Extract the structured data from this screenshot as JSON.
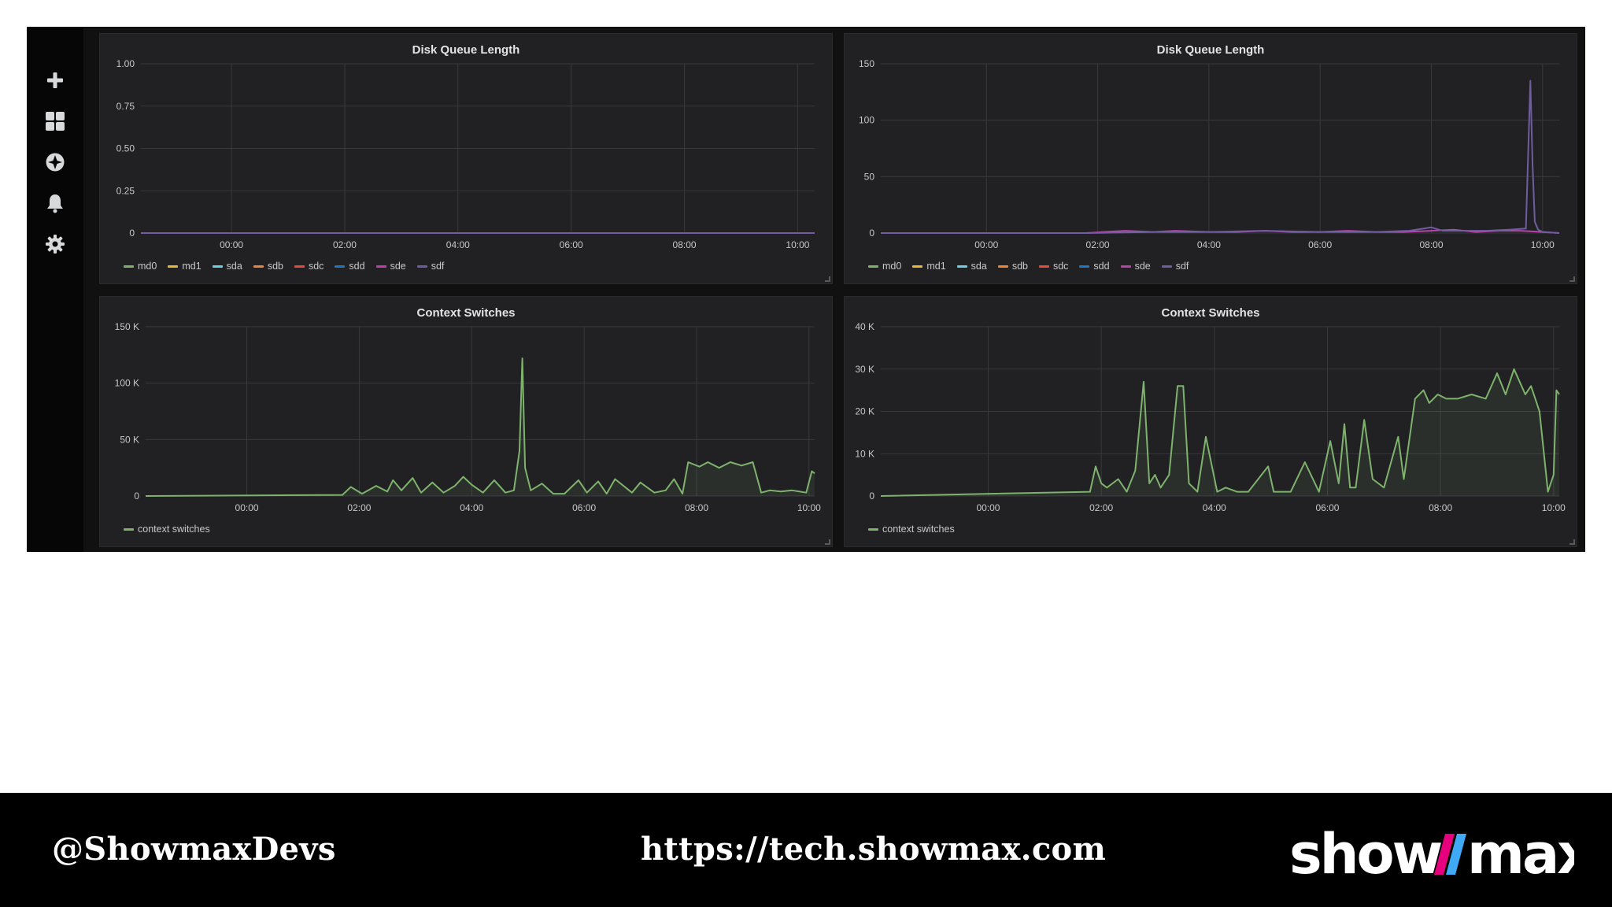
{
  "colors": {
    "md0": "#7eb26d",
    "md1": "#eab839",
    "sda": "#6ed0e0",
    "sdb": "#ef843c",
    "sdc": "#e24d42",
    "sdd": "#1f78c1",
    "sde": "#ba43a9",
    "sdf": "#705da0",
    "context_switches": "#7eb26d",
    "grid": "#38393d",
    "axis_text": "#c7c7c7"
  },
  "sidebar": {
    "icons": [
      {
        "name": "plus-icon"
      },
      {
        "name": "dashboards-icon"
      },
      {
        "name": "explore-icon"
      },
      {
        "name": "alerting-bell-icon"
      },
      {
        "name": "settings-gear-icon"
      }
    ]
  },
  "panels": [
    {
      "id": "p1",
      "title": "Disk Queue Length",
      "legend": [
        "md0",
        "md1",
        "sda",
        "sdb",
        "sdc",
        "sdd",
        "sde",
        "sdf"
      ]
    },
    {
      "id": "p2",
      "title": "Disk Queue Length",
      "legend": [
        "md0",
        "md1",
        "sda",
        "sdb",
        "sdc",
        "sdd",
        "sde",
        "sdf"
      ]
    },
    {
      "id": "p3",
      "title": "Context Switches",
      "legend": [
        "context switches"
      ]
    },
    {
      "id": "p4",
      "title": "Context Switches",
      "legend": [
        "context switches"
      ]
    }
  ],
  "chart_data": [
    {
      "type": "line",
      "title": "Disk Queue Length",
      "x_ticks": [
        "00:00",
        "02:00",
        "04:00",
        "06:00",
        "08:00",
        "10:00"
      ],
      "y_ticks": [
        "0",
        "0.25",
        "0.50",
        "0.75",
        "1.00"
      ],
      "ylim": [
        0,
        1
      ],
      "xlim": [
        -1.6,
        10.3
      ],
      "grid": true,
      "legend_position": "bottom-left",
      "series": [
        {
          "name": "md0",
          "x": [
            -1.6,
            10.3
          ],
          "y": [
            0,
            0
          ]
        },
        {
          "name": "md1",
          "x": [
            -1.6,
            10.3
          ],
          "y": [
            0,
            0
          ]
        },
        {
          "name": "sda",
          "x": [
            -1.6,
            10.3
          ],
          "y": [
            0,
            0
          ]
        },
        {
          "name": "sdb",
          "x": [
            -1.6,
            10.3
          ],
          "y": [
            0,
            0
          ]
        },
        {
          "name": "sdc",
          "x": [
            -1.6,
            10.3
          ],
          "y": [
            0,
            0
          ]
        },
        {
          "name": "sdd",
          "x": [
            -1.6,
            10.3
          ],
          "y": [
            0,
            0
          ]
        },
        {
          "name": "sde",
          "x": [
            -1.6,
            10.3
          ],
          "y": [
            0,
            0
          ]
        },
        {
          "name": "sdf",
          "x": [
            -1.6,
            10.3
          ],
          "y": [
            0,
            0
          ]
        }
      ]
    },
    {
      "type": "line",
      "title": "Disk Queue Length",
      "x_ticks": [
        "00:00",
        "02:00",
        "04:00",
        "06:00",
        "08:00",
        "10:00"
      ],
      "y_ticks": [
        "0",
        "50",
        "100",
        "150"
      ],
      "ylim": [
        0,
        150
      ],
      "xlim": [
        -1.9,
        10.3
      ],
      "grid": true,
      "legend_position": "bottom-left",
      "series": [
        {
          "name": "sde",
          "x": [
            -1.9,
            1.8,
            2.1,
            2.5,
            3.0,
            3.4,
            4.0,
            4.5,
            5.0,
            5.5,
            6.0,
            6.5,
            7.0,
            7.5,
            8.0,
            8.4,
            8.8,
            9.2,
            9.6,
            10.0,
            10.3
          ],
          "y": [
            0,
            0,
            1,
            2,
            1,
            2,
            1,
            1,
            2,
            1,
            1,
            2,
            1,
            1,
            2,
            3,
            1,
            2,
            2,
            1,
            0
          ]
        },
        {
          "name": "sdf",
          "x": [
            -1.9,
            1.8,
            3.0,
            4.0,
            5.0,
            6.0,
            7.0,
            7.6,
            8.0,
            8.2,
            8.5,
            9.0,
            9.4,
            9.7,
            9.78,
            9.82,
            9.86,
            9.92,
            10.0,
            10.3
          ],
          "y": [
            0,
            0,
            1,
            1,
            2,
            1,
            1,
            2,
            5,
            2,
            2,
            2,
            3,
            4,
            135,
            60,
            10,
            3,
            1,
            0
          ]
        }
      ]
    },
    {
      "type": "area",
      "title": "Context Switches",
      "x_ticks": [
        "00:00",
        "02:00",
        "04:00",
        "06:00",
        "08:00",
        "10:00"
      ],
      "y_ticks": [
        "0",
        "50 K",
        "100 K",
        "150 K"
      ],
      "ylim": [
        0,
        150000
      ],
      "xlim": [
        -1.8,
        10.1
      ],
      "grid": true,
      "legend_position": "bottom-left",
      "series": [
        {
          "name": "context switches",
          "x": [
            -1.8,
            1.7,
            1.85,
            2.05,
            2.3,
            2.5,
            2.6,
            2.75,
            2.95,
            3.1,
            3.3,
            3.5,
            3.7,
            3.85,
            4.0,
            4.2,
            4.4,
            4.6,
            4.75,
            4.85,
            4.9,
            4.95,
            5.05,
            5.25,
            5.45,
            5.65,
            5.9,
            6.05,
            6.25,
            6.4,
            6.55,
            6.85,
            7.0,
            7.25,
            7.45,
            7.6,
            7.75,
            7.85,
            8.05,
            8.2,
            8.4,
            8.6,
            8.8,
            9.0,
            9.15,
            9.3,
            9.5,
            9.7,
            9.95,
            10.05,
            10.1
          ],
          "y": [
            0,
            1000,
            8000,
            2000,
            9000,
            4000,
            14000,
            5000,
            16000,
            3000,
            12000,
            3000,
            9000,
            17000,
            10000,
            3000,
            14000,
            3000,
            5000,
            40000,
            122000,
            25000,
            5000,
            11000,
            2000,
            2000,
            14000,
            3000,
            13000,
            2000,
            15000,
            3000,
            12000,
            3000,
            5000,
            15000,
            2000,
            30000,
            26000,
            30000,
            25000,
            30000,
            27000,
            30000,
            3000,
            5000,
            4000,
            5000,
            3000,
            22000,
            20000
          ]
        }
      ]
    },
    {
      "type": "area",
      "title": "Context Switches",
      "x_ticks": [
        "00:00",
        "02:00",
        "04:00",
        "06:00",
        "08:00",
        "10:00"
      ],
      "y_ticks": [
        "0",
        "10 K",
        "20 K",
        "30 K",
        "40 K"
      ],
      "ylim": [
        0,
        40000
      ],
      "xlim": [
        -1.9,
        10.1
      ],
      "grid": true,
      "legend_position": "bottom-left",
      "series": [
        {
          "name": "context switches",
          "x": [
            -1.9,
            1.8,
            1.9,
            2.0,
            2.1,
            2.3,
            2.45,
            2.6,
            2.75,
            2.85,
            2.95,
            3.05,
            3.2,
            3.35,
            3.45,
            3.55,
            3.7,
            3.85,
            4.05,
            4.2,
            4.4,
            4.6,
            4.95,
            5.05,
            5.15,
            5.35,
            5.6,
            5.85,
            6.05,
            6.2,
            6.3,
            6.4,
            6.5,
            6.65,
            6.8,
            7.0,
            7.25,
            7.35,
            7.55,
            7.7,
            7.8,
            7.95,
            8.1,
            8.3,
            8.55,
            8.8,
            9.0,
            9.15,
            9.3,
            9.5,
            9.6,
            9.75,
            9.9,
            10.0,
            10.05,
            10.1
          ],
          "y": [
            0,
            1000,
            7000,
            3000,
            2000,
            4000,
            1000,
            6000,
            27000,
            3000,
            5000,
            2000,
            5000,
            26000,
            26000,
            3000,
            1000,
            14000,
            1000,
            2000,
            1000,
            1000,
            7000,
            1000,
            1000,
            1000,
            8000,
            1000,
            13000,
            3000,
            17000,
            2000,
            2000,
            18000,
            4000,
            2000,
            14000,
            4000,
            23000,
            25000,
            22000,
            24000,
            23000,
            23000,
            24000,
            23000,
            29000,
            24000,
            30000,
            24000,
            26000,
            20000,
            1000,
            5000,
            25000,
            24000
          ]
        }
      ]
    }
  ],
  "footer": {
    "handle": "@ShowmaxDevs",
    "url": "https://tech.showmax.com",
    "logo_text": "showmax"
  }
}
